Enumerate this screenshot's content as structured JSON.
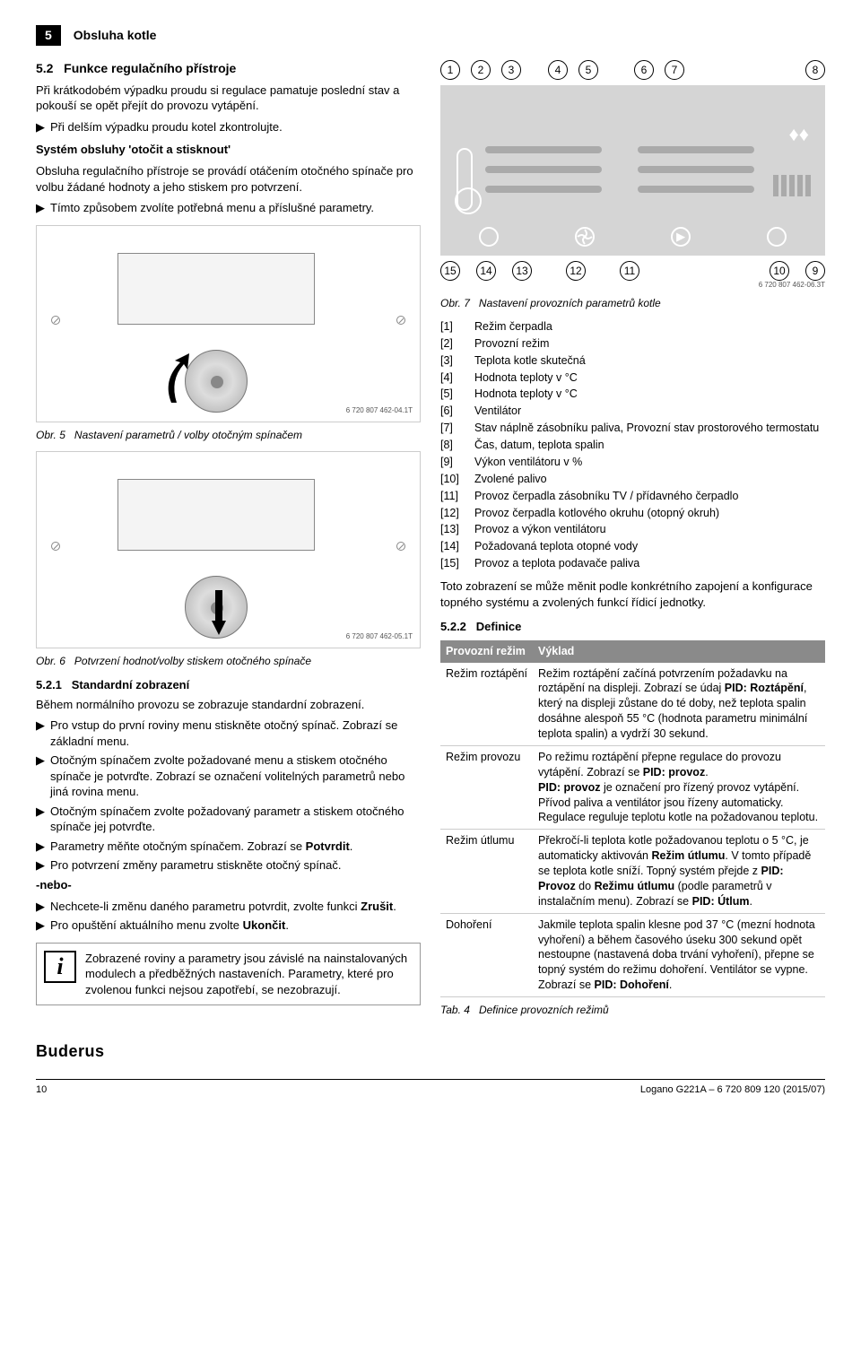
{
  "header": {
    "page_num": "5",
    "chapter": "Obsluha kotle"
  },
  "sec52": {
    "num": "5.2",
    "title": "Funkce regulačního přístroje",
    "intro": "Při krátkodobém výpadku proudu si regulace pamatuje poslední stav a pokouší se opět přejít do provozu vytápění.",
    "b1": "Při delším výpadku proudu kotel zkontrolujte.",
    "sys_title": "Systém obsluhy 'otočit a stisknout'",
    "sys_p": "Obsluha regulačního přístroje se provádí otáčením otočného spínače pro volbu žádané hodnoty a jeho stiskem pro potvrzení.",
    "b2": "Tímto způsobem zvolíte potřebná menu a příslušné parametry."
  },
  "fig5": {
    "code": "6 720 807 462-04.1T",
    "caption_label": "Obr. 5",
    "caption_text": "Nastavení parametrů / volby otočným spínačem"
  },
  "fig6": {
    "code": "6 720 807 462-05.1T",
    "caption_label": "Obr. 6",
    "caption_text": "Potvrzení hodnot/volby stiskem otočného spínače"
  },
  "sec521": {
    "num": "5.2.1",
    "title": "Standardní zobrazení",
    "p": "Během normálního provozu se zobrazuje standardní zobrazení.",
    "items": [
      "Pro vstup do první roviny menu stiskněte otočný spínač. Zobrazí se základní menu.",
      "Otočným spínačem zvolte požadované menu a stiskem otočného spínače je potvrďte. Zobrazí se označení volitelných parametrů nebo jiná rovina menu.",
      "Otočným spínačem zvolte požadovaný parametr a stiskem otočného spínače jej potvrďte.",
      "Parametry měňte otočným spínačem. Zobrazí se ",
      "Pro potvrzení změny parametru stiskněte otočný spínač."
    ],
    "potvrdit": "Potvrdit",
    "or": "-nebo-",
    "items2": [
      "Nechcete-li změnu daného parametru potvrdit, zvolte funkci ",
      "Pro opuštění aktuálního menu zvolte "
    ],
    "zrusit": "Zrušit",
    "ukoncit": "Ukončit",
    "info": "Zobrazené roviny a parametry jsou závislé na nainstalovaných modulech a předběžných nastaveních. Parametry, které pro zvolenou funkci nejsou zapotřebí, se nezobrazují."
  },
  "fig7": {
    "top_nums": [
      "1",
      "2",
      "3",
      "4",
      "5",
      "6",
      "7",
      "8"
    ],
    "bot_nums": [
      "15",
      "14",
      "13",
      "12",
      "11",
      "10",
      "9"
    ],
    "code": "6 720 807 462-06.3T",
    "caption_label": "Obr. 7",
    "caption_text": "Nastavení provozních parametrů kotle",
    "legend": [
      {
        "k": "[1]",
        "v": "Režim čerpadla"
      },
      {
        "k": "[2]",
        "v": "Provozní režim"
      },
      {
        "k": "[3]",
        "v": "Teplota kotle skutečná"
      },
      {
        "k": "[4]",
        "v": "Hodnota teploty v °C"
      },
      {
        "k": "[5]",
        "v": "Hodnota teploty v °C"
      },
      {
        "k": "[6]",
        "v": "Ventilátor"
      },
      {
        "k": "[7]",
        "v": "Stav náplně zásobníku paliva, Provozní stav prostorového termostatu"
      },
      {
        "k": "[8]",
        "v": "Čas, datum, teplota spalin"
      },
      {
        "k": "[9]",
        "v": "Výkon ventilátoru v %"
      },
      {
        "k": "[10]",
        "v": "Zvolené palivo"
      },
      {
        "k": "[11]",
        "v": "Provoz čerpadla zásobníku TV / přídavného čerpadlo"
      },
      {
        "k": "[12]",
        "v": "Provoz čerpadla kotlového okruhu (otopný okruh)"
      },
      {
        "k": "[13]",
        "v": "Provoz a výkon ventilátoru"
      },
      {
        "k": "[14]",
        "v": "Požadovaná teplota otopné vody"
      },
      {
        "k": "[15]",
        "v": "Provoz a teplota podavače paliva"
      }
    ],
    "note": "Toto zobrazení se může měnit podle konkrétního zapojení a konfigurace topného systému a zvolených funkcí řídicí jednotky."
  },
  "sec522": {
    "num": "5.2.2",
    "title": "Definice"
  },
  "table4": {
    "h1": "Provozní režim",
    "h2": "Výklad",
    "rows": [
      {
        "k": "Režim roztápění",
        "v": "Režim roztápění začíná potvrzením požadavku na roztápění na displeji. Zobrazí se údaj <b>PID: Roztápění</b>, který na displeji zůstane do té doby, než teplota spalin dosáhne alespoň 55 °C (hodnota parametru minimální teplota spalin) a vydrží 30 sekund."
      },
      {
        "k": "Režim provozu",
        "v": "Po režimu roztápění přepne regulace do provozu vytápění. Zobrazí se <b>PID: provoz</b>.<br><b>PID: provoz</b> je označení pro řízený provoz vytápění. Přívod paliva a ventilátor jsou řízeny automaticky. Regulace reguluje teplotu kotle na požadovanou teplotu."
      },
      {
        "k": "Režim útlumu",
        "v": "Překročí-li teplota kotle požadovanou teplotu o 5 °C, je automaticky aktivován <b>Režim útlumu</b>. V tomto případě se teplota kotle sníží. Topný systém přejde z <b>PID: Provoz</b> do <b>Režimu útlumu</b> (podle parametrů v instalačním menu). Zobrazí se <b>PID: Útlum</b>."
      },
      {
        "k": "Dohoření",
        "v": "Jakmile teplota spalin klesne pod 37 °C (mezní hodnota vyhoření) a během časového úseku 300 sekund opět nestoupne (nastavená doba trvání vyhoření), přepne se topný systém do režimu dohoření. Ventilátor se vypne. Zobrazí se <b>PID: Dohoření</b>."
      }
    ],
    "caption_label": "Tab. 4",
    "caption_text": "Definice provozních režimů"
  },
  "footer": {
    "brand": "Buderus",
    "page": "10",
    "doc": "Logano G221A – 6 720 809 120 (2015/07)"
  },
  "colors": {
    "header_bg": "#000000",
    "table_header": "#8a8a8a",
    "diagram_bg": "#d5d5d5"
  }
}
